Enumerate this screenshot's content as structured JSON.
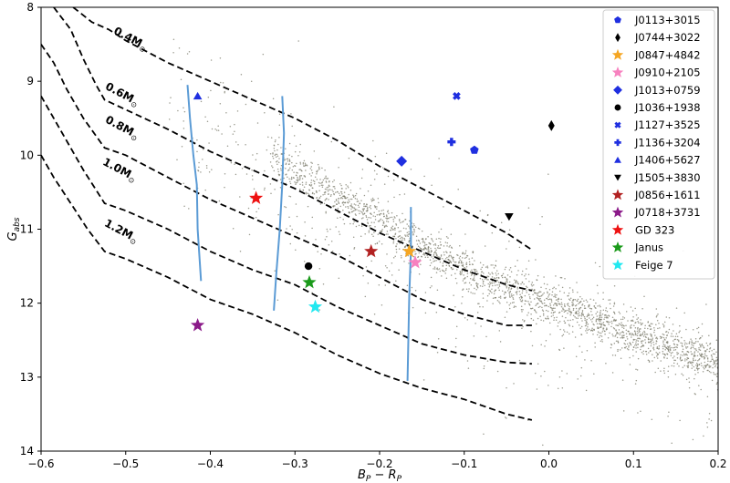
{
  "chart_data": {
    "type": "scatter",
    "title": "",
    "xlabel": "B_P − R_P",
    "ylabel": "G_abs",
    "xlim": [
      -0.6,
      0.2
    ],
    "ylim": [
      14,
      8
    ],
    "y_inverted": true,
    "xticks": [
      "−0.6",
      "−0.5",
      "−0.4",
      "−0.3",
      "−0.2",
      "−0.1",
      "0.0",
      "0.1",
      "0.2"
    ],
    "xtick_values": [
      -0.6,
      -0.5,
      -0.4,
      -0.3,
      -0.2,
      -0.1,
      0.0,
      0.1,
      0.2
    ],
    "yticks": [
      "8",
      "9",
      "10",
      "11",
      "12",
      "13",
      "14"
    ],
    "ytick_values": [
      8,
      9,
      10,
      11,
      12,
      13,
      14
    ],
    "grid": false,
    "legend_position": "top-right",
    "mass_tracks": [
      {
        "label": "0.4M",
        "sub": "⊙",
        "label_at": [
          -0.515,
          8.35
        ],
        "points": [
          [
            -0.562,
            8.0
          ],
          [
            -0.54,
            8.2
          ],
          [
            -0.52,
            8.3
          ],
          [
            -0.5,
            8.45
          ],
          [
            -0.45,
            8.75
          ],
          [
            -0.4,
            9.0
          ],
          [
            -0.35,
            9.25
          ],
          [
            -0.3,
            9.5
          ],
          [
            -0.25,
            9.8
          ],
          [
            -0.2,
            10.15
          ],
          [
            -0.15,
            10.45
          ],
          [
            -0.1,
            10.75
          ],
          [
            -0.05,
            11.05
          ],
          [
            -0.02,
            11.28
          ]
        ]
      },
      {
        "label": "0.6M",
        "sub": "⊙",
        "label_at": [
          -0.525,
          9.1
        ],
        "points": [
          [
            -0.585,
            8.0
          ],
          [
            -0.565,
            8.3
          ],
          [
            -0.55,
            8.7
          ],
          [
            -0.535,
            9.05
          ],
          [
            -0.525,
            9.25
          ],
          [
            -0.45,
            9.65
          ],
          [
            -0.4,
            9.95
          ],
          [
            -0.35,
            10.2
          ],
          [
            -0.3,
            10.45
          ],
          [
            -0.25,
            10.75
          ],
          [
            -0.2,
            11.05
          ],
          [
            -0.15,
            11.3
          ],
          [
            -0.1,
            11.55
          ],
          [
            -0.05,
            11.75
          ],
          [
            -0.02,
            11.83
          ]
        ]
      },
      {
        "label": "0.8M",
        "sub": "⊙",
        "label_at": [
          -0.525,
          9.55
        ],
        "points": [
          [
            -0.6,
            8.5
          ],
          [
            -0.585,
            8.75
          ],
          [
            -0.57,
            9.1
          ],
          [
            -0.55,
            9.5
          ],
          [
            -0.525,
            9.9
          ],
          [
            -0.5,
            10.0
          ],
          [
            -0.45,
            10.3
          ],
          [
            -0.4,
            10.6
          ],
          [
            -0.35,
            10.85
          ],
          [
            -0.3,
            11.1
          ],
          [
            -0.25,
            11.35
          ],
          [
            -0.2,
            11.65
          ],
          [
            -0.15,
            11.95
          ],
          [
            -0.1,
            12.15
          ],
          [
            -0.05,
            12.3
          ],
          [
            -0.02,
            12.3
          ]
        ]
      },
      {
        "label": "1.0M",
        "sub": "⊙",
        "label_at": [
          -0.528,
          10.12
        ],
        "points": [
          [
            -0.6,
            9.2
          ],
          [
            -0.585,
            9.5
          ],
          [
            -0.57,
            9.8
          ],
          [
            -0.55,
            10.2
          ],
          [
            -0.525,
            10.65
          ],
          [
            -0.5,
            10.75
          ],
          [
            -0.45,
            11.0
          ],
          [
            -0.4,
            11.3
          ],
          [
            -0.35,
            11.55
          ],
          [
            -0.3,
            11.75
          ],
          [
            -0.25,
            12.05
          ],
          [
            -0.2,
            12.3
          ],
          [
            -0.15,
            12.55
          ],
          [
            -0.1,
            12.7
          ],
          [
            -0.05,
            12.8
          ],
          [
            -0.02,
            12.82
          ]
        ]
      },
      {
        "label": "1.2M",
        "sub": "⊙",
        "label_at": [
          -0.526,
          10.95
        ],
        "points": [
          [
            -0.6,
            10.0
          ],
          [
            -0.585,
            10.3
          ],
          [
            -0.565,
            10.65
          ],
          [
            -0.545,
            11.0
          ],
          [
            -0.525,
            11.3
          ],
          [
            -0.5,
            11.4
          ],
          [
            -0.45,
            11.65
          ],
          [
            -0.4,
            11.95
          ],
          [
            -0.35,
            12.15
          ],
          [
            -0.3,
            12.4
          ],
          [
            -0.25,
            12.7
          ],
          [
            -0.2,
            12.95
          ],
          [
            -0.15,
            13.15
          ],
          [
            -0.1,
            13.3
          ],
          [
            -0.05,
            13.5
          ],
          [
            -0.02,
            13.58
          ]
        ]
      }
    ],
    "isochrones": [
      [
        [
          -0.427,
          9.05
        ],
        [
          -0.424,
          9.5
        ],
        [
          -0.42,
          10.0
        ],
        [
          -0.416,
          10.4
        ],
        [
          -0.415,
          11.0
        ],
        [
          -0.411,
          11.7
        ]
      ],
      [
        [
          -0.315,
          9.2
        ],
        [
          -0.313,
          9.7
        ],
        [
          -0.315,
          10.4
        ],
        [
          -0.318,
          11.0
        ],
        [
          -0.322,
          11.6
        ],
        [
          -0.325,
          12.1
        ]
      ],
      [
        [
          -0.163,
          10.7
        ],
        [
          -0.163,
          11.3
        ],
        [
          -0.165,
          11.9
        ],
        [
          -0.166,
          12.5
        ],
        [
          -0.167,
          13.05
        ]
      ]
    ],
    "background_cloud": {
      "count": 2600,
      "main_sequence": [
        [
          -0.33,
          10.0
        ],
        [
          -0.25,
          10.55
        ],
        [
          -0.15,
          11.2
        ],
        [
          -0.05,
          11.8
        ],
        [
          0.05,
          12.2
        ],
        [
          0.15,
          12.6
        ],
        [
          0.2,
          12.8
        ]
      ],
      "color": "#7a7a6a"
    },
    "series": [
      {
        "name": "J0113+3015",
        "marker": "pentagon",
        "color": "#1f2fe0",
        "x": -0.088,
        "y": 9.93
      },
      {
        "name": "J0744+3022",
        "marker": "thin_diamond",
        "color": "#000000",
        "x": 0.003,
        "y": 9.6
      },
      {
        "name": "J0847+4842",
        "marker": "star",
        "color": "#f5a623",
        "x": -0.165,
        "y": 11.3
      },
      {
        "name": "J0910+2105",
        "marker": "star",
        "color": "#f781bf",
        "x": -0.158,
        "y": 11.45
      },
      {
        "name": "J1013+0759",
        "marker": "diamond",
        "color": "#1f2fe0",
        "x": -0.174,
        "y": 10.08
      },
      {
        "name": "J1036+1938",
        "marker": "circle",
        "color": "#000000",
        "x": -0.284,
        "y": 11.5
      },
      {
        "name": "J1127+3525",
        "marker": "x",
        "color": "#1f2fe0",
        "x": -0.109,
        "y": 9.2
      },
      {
        "name": "J1136+3204",
        "marker": "plus",
        "color": "#1f2fe0",
        "x": -0.115,
        "y": 9.82
      },
      {
        "name": "J1406+5627",
        "marker": "triangle_up",
        "color": "#1f2fe0",
        "x": -0.415,
        "y": 9.2
      },
      {
        "name": "J1505+3830",
        "marker": "triangle_down",
        "color": "#000000",
        "x": -0.047,
        "y": 10.83
      },
      {
        "name": "J0856+1611",
        "marker": "star",
        "color": "#b22222",
        "x": -0.21,
        "y": 11.3
      },
      {
        "name": "J0718+3731",
        "marker": "star",
        "color": "#8b1a89",
        "x": -0.415,
        "y": 12.3
      },
      {
        "name": "GD 323",
        "marker": "star",
        "color": "#ee1111",
        "x": -0.346,
        "y": 10.58
      },
      {
        "name": "Janus",
        "marker": "star",
        "color": "#1a9a1a",
        "x": -0.283,
        "y": 11.72
      },
      {
        "name": "Feige 7",
        "marker": "star",
        "color": "#22e8f0",
        "x": -0.276,
        "y": 12.05
      }
    ]
  }
}
